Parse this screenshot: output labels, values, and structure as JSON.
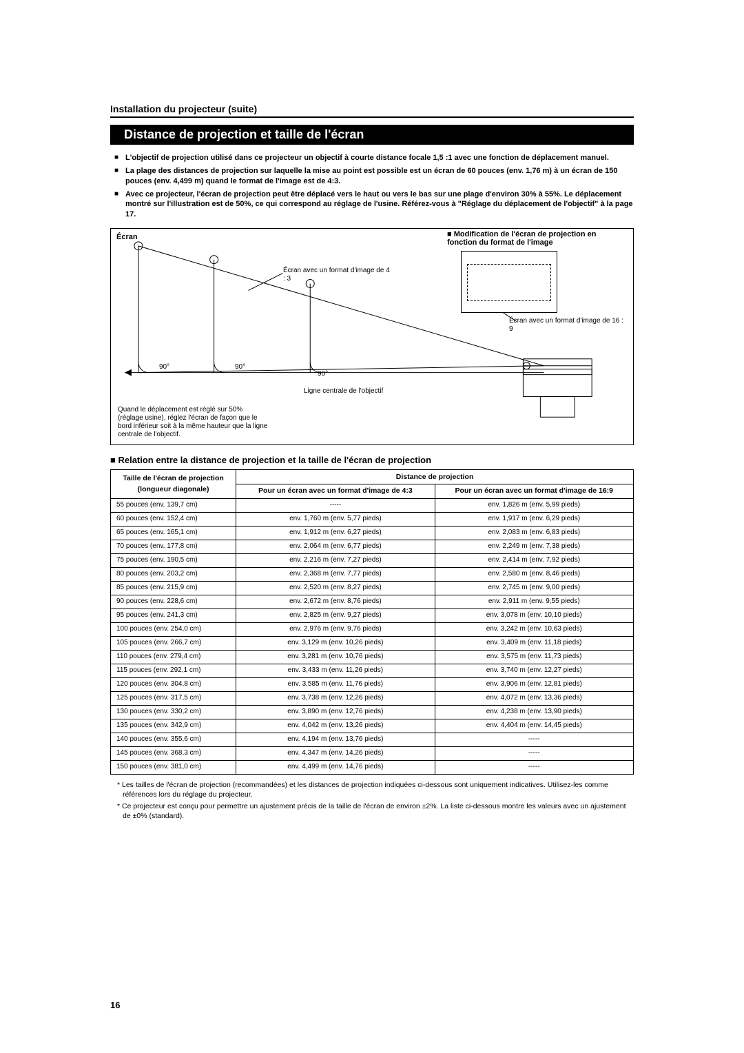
{
  "page_number": "16",
  "section_title": "Installation du projecteur (suite)",
  "banner": "Distance de projection et taille de l'écran",
  "bullets": [
    "L'objectif de projection utilisé dans ce projecteur un objectif à courte distance focale 1,5 :1 avec une fonction de déplacement manuel.",
    "La plage des distances de projection sur laquelle la mise au point est possible est un écran de 60 pouces (env. 1,76 m) à un écran de 150 pouces (env. 4,499 m) quand le format de l'image est de 4:3.",
    "Avec ce projecteur, l'écran de projection peut être déplacé vers le haut ou vers le bas sur une plage d'environ 30% à 55%. Le déplacement montré sur l'illustration est de 50%, ce qui correspond au réglage de l'usine. Référez-vous à \"Réglage du déplacement de l'objectif\" à la page 17."
  ],
  "diagram": {
    "ecran_label": "Écran",
    "mod_label": "Modification de l'écran de projection en fonction du format de l'image",
    "format_43": "Écran avec un format d'image de 4 : 3",
    "format_169": "Écran avec un format d'image de 16 : 9",
    "angle": "90°",
    "centerline": "Ligne centrale de l'objectif",
    "shift_note": "Quand le déplacement est réglé sur 50% (réglage usine), réglez l'écran de façon que le bord inférieur soit à la même hauteur que la ligne centrale de l'objectif."
  },
  "table": {
    "relation_title": "■ Relation entre la distance de projection et la taille de l'écran de projection",
    "col1_header": "Taille de l'écran de projection",
    "col1_sub": "(longueur diagonale)",
    "distance_header": "Distance de projection",
    "col2_header": "Pour un écran avec un format d'image de 4:3",
    "col3_header": "Pour un écran avec un format d'image de 16:9",
    "rows": [
      {
        "size": "55 pouces (env. 139,7 cm)",
        "d43": "-----",
        "d169": "env. 1,826 m (env.  5,99 pieds)"
      },
      {
        "size": "60 pouces (env. 152,4 cm)",
        "d43": "env. 1,760 m (env.  5,77 pieds)",
        "d169": "env. 1,917 m (env.  6,29 pieds)"
      },
      {
        "size": "65 pouces (env. 165,1 cm)",
        "d43": "env. 1,912 m (env.  6,27 pieds)",
        "d169": "env. 2,083 m (env.  6,83 pieds)"
      },
      {
        "size": "70 pouces (env. 177,8 cm)",
        "d43": "env. 2,064 m (env.  6,77 pieds)",
        "d169": "env. 2,249 m (env.  7,38 pieds)"
      },
      {
        "size": "75 pouces (env. 190,5 cm)",
        "d43": "env. 2,216 m (env.  7,27 pieds)",
        "d169": "env. 2,414 m (env.  7,92 pieds)"
      },
      {
        "size": "80 pouces (env. 203,2 cm)",
        "d43": "env. 2,368 m (env.  7,77 pieds)",
        "d169": "env. 2,580 m (env.  8,46 pieds)"
      },
      {
        "size": "85 pouces (env. 215,9 cm)",
        "d43": "env. 2,520 m (env.  8,27 pieds)",
        "d169": "env. 2,745 m (env.  9,00 pieds)"
      },
      {
        "size": "90 pouces (env. 228,6 cm)",
        "d43": "env. 2,672 m (env.  8,76 pieds)",
        "d169": "env. 2,911 m (env.  9,55 pieds)"
      },
      {
        "size": "95 pouces (env. 241,3 cm)",
        "d43": "env. 2,825 m (env.  9,27 pieds)",
        "d169": "env. 3,078 m (env. 10,10 pieds)"
      },
      {
        "size": "100 pouces (env. 254,0 cm)",
        "d43": "env. 2,976 m (env.  9,76 pieds)",
        "d169": "env. 3,242 m (env. 10,63 pieds)"
      },
      {
        "size": "105 pouces (env. 266,7 cm)",
        "d43": "env. 3,129 m (env. 10,26 pieds)",
        "d169": "env. 3,409 m (env. 11,18 pieds)"
      },
      {
        "size": "110 pouces (env. 279,4 cm)",
        "d43": "env. 3,281 m (env. 10,76 pieds)",
        "d169": "env. 3,575 m (env. 11,73 pieds)"
      },
      {
        "size": "115 pouces (env. 292,1 cm)",
        "d43": "env. 3,433 m (env. 11,26 pieds)",
        "d169": "env. 3,740 m (env. 12,27 pieds)"
      },
      {
        "size": "120 pouces (env. 304,8 cm)",
        "d43": "env. 3,585 m (env. 11,76 pieds)",
        "d169": "env. 3,906 m (env. 12,81 pieds)"
      },
      {
        "size": "125 pouces (env. 317,5 cm)",
        "d43": "env. 3,738 m (env. 12,26 pieds)",
        "d169": "env. 4,072 m (env. 13,36 pieds)"
      },
      {
        "size": "130 pouces (env. 330,2 cm)",
        "d43": "env. 3,890 m (env. 12,76 pieds)",
        "d169": "env. 4,238 m (env. 13,90 pieds)"
      },
      {
        "size": "135 pouces (env. 342,9 cm)",
        "d43": "env. 4,042 m (env. 13,26 pieds)",
        "d169": "env. 4,404 m (env. 14,45 pieds)"
      },
      {
        "size": "140 pouces (env. 355,6 cm)",
        "d43": "env. 4,194 m (env. 13,76 pieds)",
        "d169": "-----"
      },
      {
        "size": "145 pouces (env. 368,3 cm)",
        "d43": "env. 4,347 m (env. 14,26 pieds)",
        "d169": "-----"
      },
      {
        "size": "150 pouces (env. 381,0 cm)",
        "d43": "env. 4,499 m (env. 14,76 pieds)",
        "d169": "-----"
      }
    ]
  },
  "footnotes": [
    "* Les tailles de l'écran de projection (recommandées) et les distances de projection indiquées ci-dessous sont uniquement indicatives. Utilisez-les comme références lors du réglage du projecteur.",
    "* Ce projecteur est conçu pour permettre un ajustement précis de la taille de l'écran de environ ±2%. La liste ci-dessous montre les valeurs avec un ajustement de ±0% (standard)."
  ],
  "colors": {
    "text": "#000000",
    "bg": "#ffffff",
    "banner_bg": "#000000",
    "banner_fg": "#ffffff",
    "border": "#000000"
  }
}
